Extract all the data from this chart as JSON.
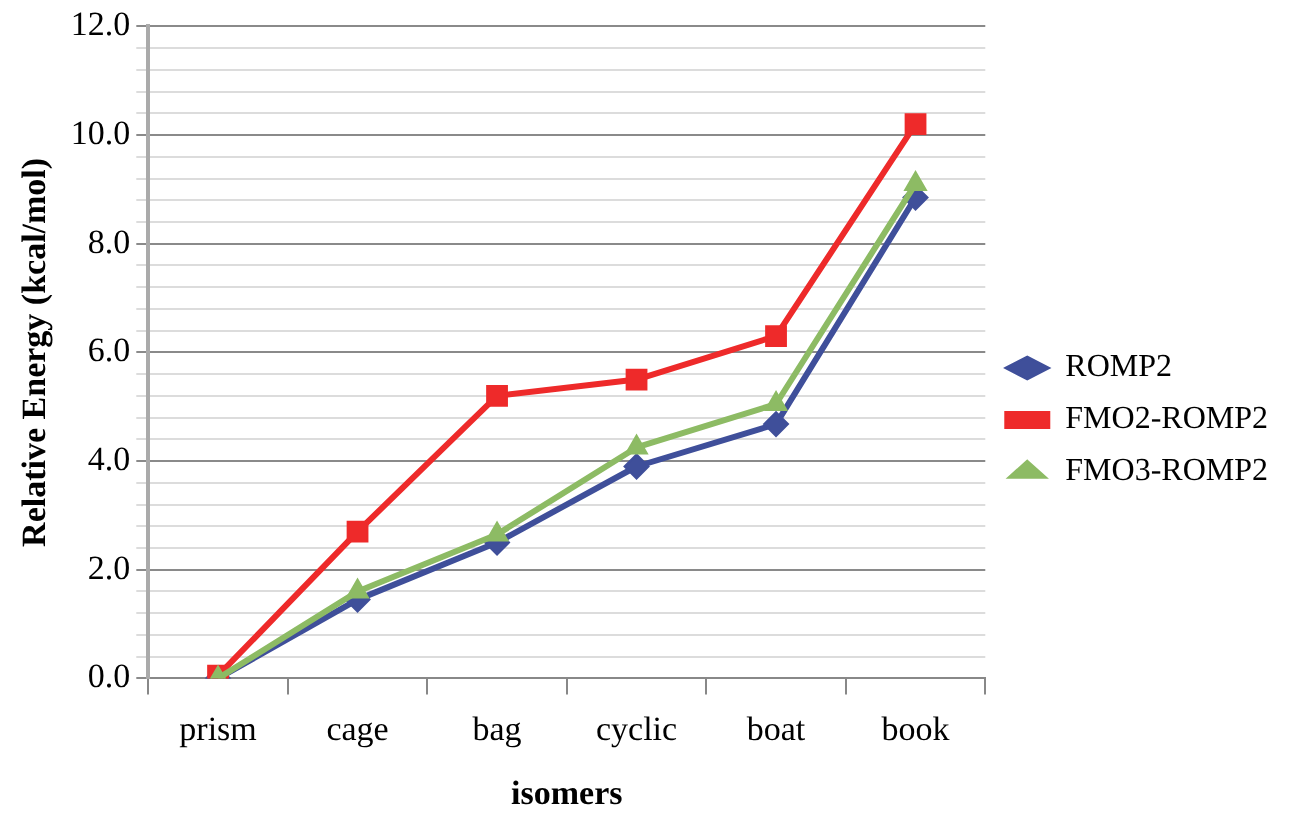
{
  "chart_data": {
    "type": "line",
    "xlabel": "isomers",
    "ylabel": "Relative Energy (kcal/mol)",
    "categories": [
      "prism",
      "cage",
      "bag",
      "cyclic",
      "boat",
      "book"
    ],
    "series": [
      {
        "name": "ROMP2",
        "color": "#3f4f9a",
        "marker": "diamond",
        "values": [
          0,
          1.45,
          2.5,
          3.9,
          4.68,
          8.85
        ]
      },
      {
        "name": "FMO2-ROMP2",
        "color": "#ee2a2a",
        "marker": "square",
        "values": [
          0.05,
          2.7,
          5.2,
          5.5,
          6.3,
          10.2
        ]
      },
      {
        "name": "FMO3-ROMP2",
        "color": "#8dbb64",
        "marker": "triangle",
        "values": [
          0,
          1.6,
          2.65,
          4.25,
          5.05,
          9.1
        ]
      }
    ],
    "ylim": [
      0,
      12
    ],
    "yticks": [
      {
        "value": 0,
        "label": "0.0"
      },
      {
        "value": 0.4,
        "label": null
      },
      {
        "value": 0.8,
        "label": null
      },
      {
        "value": 1.2,
        "label": null
      },
      {
        "value": 1.6,
        "label": null
      },
      {
        "value": 2,
        "label": "2.0"
      },
      {
        "value": 2.4,
        "label": null
      },
      {
        "value": 2.8,
        "label": null
      },
      {
        "value": 3.2,
        "label": null
      },
      {
        "value": 3.6,
        "label": null
      },
      {
        "value": 4,
        "label": "4.0"
      },
      {
        "value": 4.4,
        "label": null
      },
      {
        "value": 4.8,
        "label": null
      },
      {
        "value": 5.2,
        "label": null
      },
      {
        "value": 5.6,
        "label": null
      },
      {
        "value": 6,
        "label": "6.0"
      },
      {
        "value": 6.4,
        "label": null
      },
      {
        "value": 6.8,
        "label": null
      },
      {
        "value": 7.2,
        "label": null
      },
      {
        "value": 7.6,
        "label": null
      },
      {
        "value": 8,
        "label": "8.0"
      },
      {
        "value": 8.4,
        "label": null
      },
      {
        "value": 8.8,
        "label": null
      },
      {
        "value": 9.2,
        "label": null
      },
      {
        "value": 9.6,
        "label": null
      },
      {
        "value": 10,
        "label": "10.0"
      },
      {
        "value": 10.4,
        "label": null
      },
      {
        "value": 10.8,
        "label": null
      },
      {
        "value": 11.2,
        "label": null
      },
      {
        "value": 11.6,
        "label": null
      },
      {
        "value": 12,
        "label": "12.0"
      }
    ],
    "grid": "y",
    "legend": "right",
    "line_style": "solid"
  }
}
